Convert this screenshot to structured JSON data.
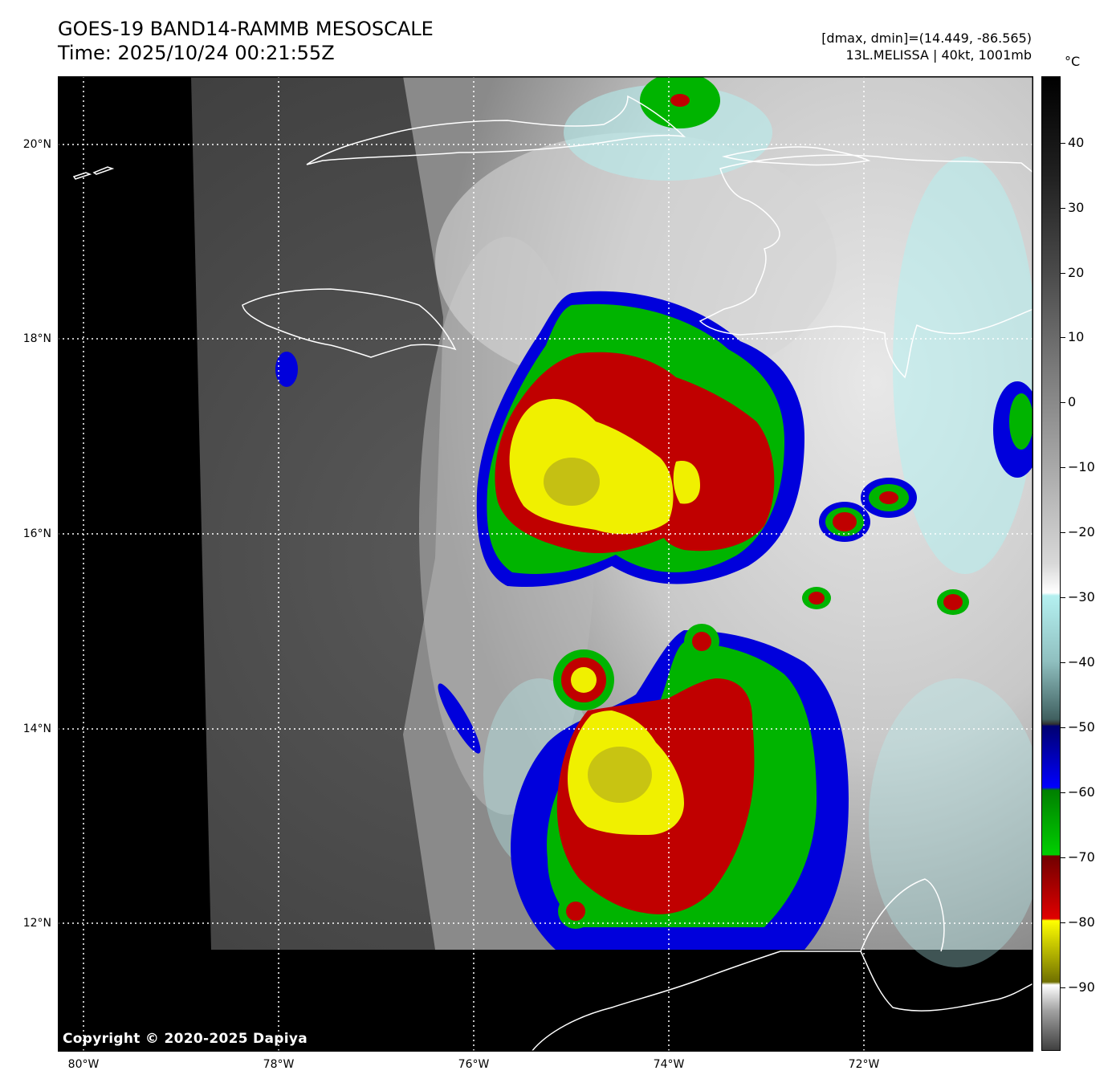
{
  "header": {
    "title": "GOES-19 BAND14-RAMMB MESOSCALE",
    "time": "Time: 2025/10/24 00:21:55Z",
    "dmax_dmin": "[dmax, dmin]=(14.449, -86.565)",
    "storm": "13L.MELISSA | 40kt, 1001mb"
  },
  "map": {
    "lat_labels": [
      "20°N",
      "18°N",
      "16°N",
      "14°N",
      "12°N"
    ],
    "lon_labels": [
      "80°W",
      "78°W",
      "76°W",
      "74°W",
      "72°W"
    ],
    "copyright": "Copyright © 2020-2025 Dapiya",
    "colors": {
      "no_data": "#000000",
      "coastline": "#ffffff",
      "cloud_red": "#c00000",
      "cloud_yellow": "#f0f000",
      "cloud_green": "#00b400",
      "cloud_blue": "#0000dc",
      "cloud_cyan": "#b4f0f0"
    }
  },
  "colorbar": {
    "unit": "°C",
    "labels": [
      "40",
      "30",
      "20",
      "10",
      "0",
      "−10",
      "−20",
      "−30",
      "−40",
      "−50",
      "−60",
      "−70",
      "−80",
      "−90"
    ]
  }
}
